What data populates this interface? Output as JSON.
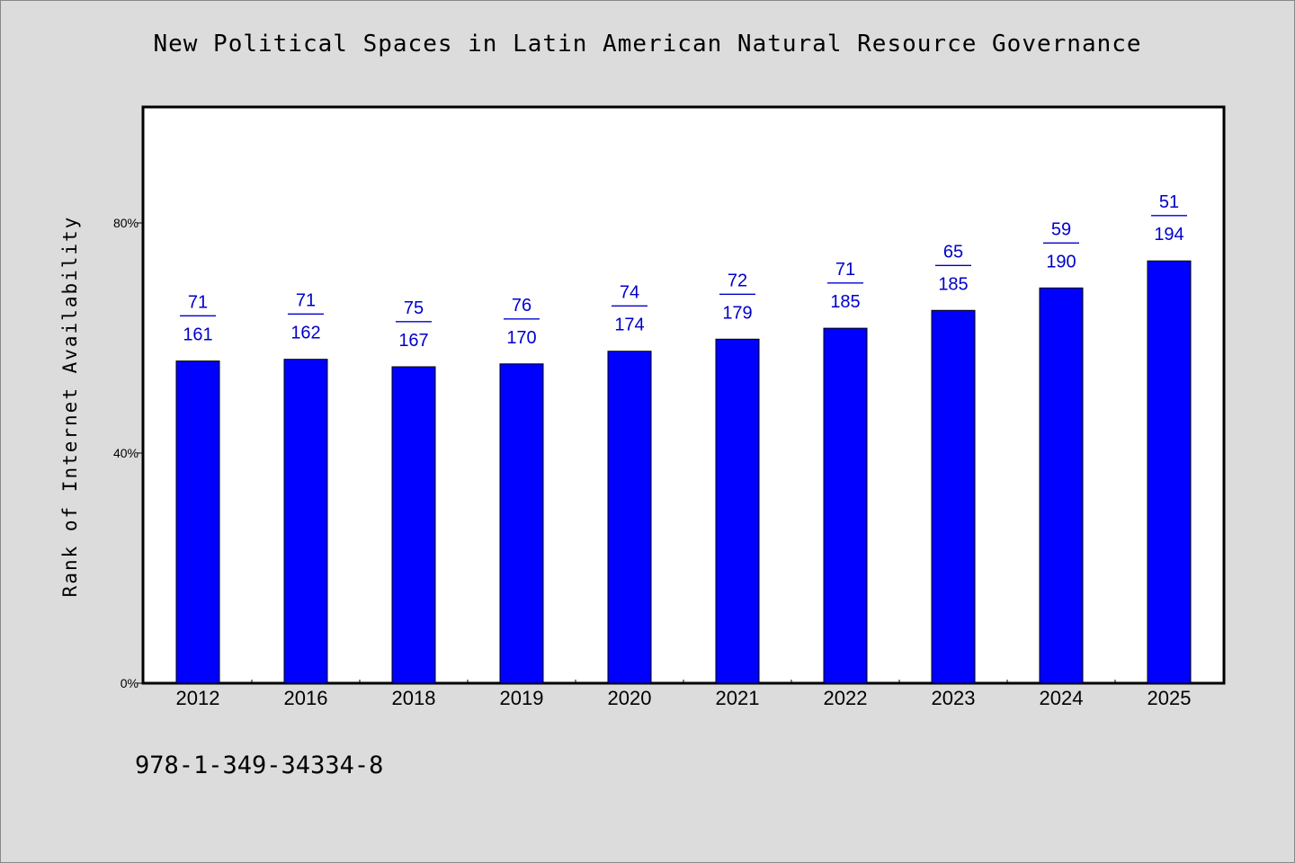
{
  "chart_data": {
    "type": "bar",
    "title": "New Political Spaces in Latin American Natural Resource Governance",
    "xlabel": "",
    "ylabel": "Rank of Internet Availability",
    "categories": [
      "2012",
      "2016",
      "2018",
      "2019",
      "2020",
      "2021",
      "2022",
      "2023",
      "2024",
      "2025"
    ],
    "values": [
      56,
      56.3,
      55,
      55.5,
      57.7,
      59.8,
      61.7,
      64.8,
      68.7,
      73.4
    ],
    "ylim": [
      0,
      100
    ],
    "yticks": [
      0,
      40,
      80
    ],
    "ytick_labels": [
      "0%",
      "40%",
      "80%"
    ],
    "grid": false,
    "bar_color": "#0000ff",
    "label_color": "#0000cc",
    "data_labels": [
      {
        "rank": "71",
        "sep": "——",
        "total": "161"
      },
      {
        "rank": "71",
        "sep": "——",
        "total": "162"
      },
      {
        "rank": "75",
        "sep": "——",
        "total": "167"
      },
      {
        "rank": "76",
        "sep": "——",
        "total": "170"
      },
      {
        "rank": "74",
        "sep": "——",
        "total": "174"
      },
      {
        "rank": "72",
        "sep": "——",
        "total": "179"
      },
      {
        "rank": "71",
        "sep": "——",
        "total": "185"
      },
      {
        "rank": "65",
        "sep": "——",
        "total": "185"
      },
      {
        "rank": "59",
        "sep": "——",
        "total": "190"
      },
      {
        "rank": "51",
        "sep": "——",
        "total": "194"
      }
    ]
  },
  "footer": {
    "isbn": "978-1-349-34334-8"
  }
}
